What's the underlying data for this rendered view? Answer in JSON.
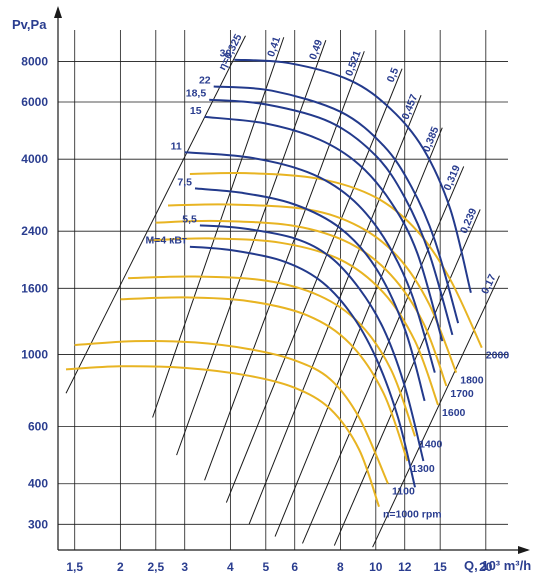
{
  "chart_data": {
    "type": "line",
    "title": "",
    "xlabel": "Q, 10³ m³/h",
    "ylabel": "Pv,Pa",
    "x_scale": "log",
    "y_scale": "log",
    "xlim": [
      1.35,
      23
    ],
    "ylim": [
      250,
      10000
    ],
    "grid": true,
    "legend": "none",
    "x_ticks": [
      "1,5",
      "2",
      "2,5",
      "3",
      "4",
      "5",
      "6",
      "8",
      "10",
      "12",
      "15",
      "20"
    ],
    "x_tick_values": [
      1.5,
      2,
      2.5,
      3,
      4,
      5,
      6,
      8,
      10,
      12,
      15,
      20
    ],
    "y_ticks": [
      "300",
      "400",
      "600",
      "1000",
      "1600",
      "2400",
      "4000",
      "6000",
      "8000"
    ],
    "y_tick_values": [
      300,
      400,
      600,
      1000,
      1600,
      2400,
      4000,
      6000,
      8000
    ],
    "power_curves": [
      {
        "label": "M=4 кВт",
        "points": [
          [
            3.1,
            2150
          ],
          [
            4,
            2100
          ],
          [
            5.5,
            1950
          ],
          [
            7,
            1700
          ],
          [
            8.5,
            1350
          ],
          [
            10,
            980
          ],
          [
            11.5,
            640
          ],
          [
            12.8,
            390
          ]
        ]
      },
      {
        "label": "5,5",
        "points": [
          [
            3.3,
            2500
          ],
          [
            4.3,
            2450
          ],
          [
            6,
            2280
          ],
          [
            7.5,
            2000
          ],
          [
            9,
            1600
          ],
          [
            10.5,
            1200
          ],
          [
            12,
            800
          ],
          [
            13.5,
            470
          ]
        ]
      },
      {
        "label": "7,5",
        "points": [
          [
            3.2,
            3250
          ],
          [
            4.3,
            3150
          ],
          [
            6,
            2900
          ],
          [
            8,
            2450
          ],
          [
            10,
            1850
          ],
          [
            12,
            1200
          ],
          [
            13.6,
            720
          ]
        ]
      },
      {
        "label": "11",
        "points": [
          [
            3,
            4200
          ],
          [
            4.5,
            4050
          ],
          [
            6.5,
            3650
          ],
          [
            8.5,
            3050
          ],
          [
            10.5,
            2300
          ],
          [
            12.5,
            1550
          ],
          [
            14.5,
            880
          ]
        ]
      },
      {
        "label": "15",
        "points": [
          [
            3.4,
            5400
          ],
          [
            5,
            5150
          ],
          [
            7,
            4600
          ],
          [
            9,
            3850
          ],
          [
            11,
            2950
          ],
          [
            13,
            2050
          ],
          [
            15.2,
            1100
          ]
        ]
      },
      {
        "label": "18,5",
        "points": [
          [
            3.5,
            6100
          ],
          [
            5,
            5900
          ],
          [
            7.5,
            5200
          ],
          [
            10,
            4100
          ],
          [
            12,
            3050
          ],
          [
            14,
            2050
          ],
          [
            16.2,
            1150
          ]
        ]
      },
      {
        "label": "22",
        "points": [
          [
            3.6,
            6700
          ],
          [
            5.2,
            6500
          ],
          [
            8,
            5600
          ],
          [
            10.5,
            4400
          ],
          [
            12.5,
            3300
          ],
          [
            14.5,
            2250
          ],
          [
            16.8,
            1250
          ]
        ]
      },
      {
        "label": "30",
        "points": [
          [
            4.1,
            8100
          ],
          [
            5.8,
            7900
          ],
          [
            8.5,
            7000
          ],
          [
            11,
            5700
          ],
          [
            13.5,
            4300
          ],
          [
            16,
            2800
          ],
          [
            18.2,
            1550
          ]
        ]
      }
    ],
    "speed_curves": [
      {
        "label": "n=1000 rpm",
        "points": [
          [
            1.42,
            900
          ],
          [
            2,
            920
          ],
          [
            3,
            910
          ],
          [
            4.5,
            860
          ],
          [
            6,
            790
          ],
          [
            7.5,
            680
          ],
          [
            9,
            510
          ],
          [
            10.2,
            340
          ]
        ]
      },
      {
        "label": "1100",
        "points": [
          [
            1.5,
            1070
          ],
          [
            2.2,
            1100
          ],
          [
            3.2,
            1090
          ],
          [
            4.5,
            1040
          ],
          [
            6,
            960
          ],
          [
            7.5,
            840
          ],
          [
            9,
            640
          ],
          [
            10.8,
            400
          ]
        ]
      },
      {
        "label": "1300",
        "points": [
          [
            2,
            1480
          ],
          [
            3,
            1500
          ],
          [
            4.5,
            1460
          ],
          [
            6.5,
            1320
          ],
          [
            8.5,
            1080
          ],
          [
            10.5,
            760
          ],
          [
            12.2,
            470
          ]
        ]
      },
      {
        "label": "1400",
        "points": [
          [
            2.1,
            1720
          ],
          [
            3.2,
            1740
          ],
          [
            5,
            1690
          ],
          [
            7,
            1520
          ],
          [
            9,
            1250
          ],
          [
            11,
            900
          ],
          [
            12.8,
            560
          ]
        ]
      },
      {
        "label": "1600",
        "points": [
          [
            2.4,
            2250
          ],
          [
            3.5,
            2280
          ],
          [
            5.5,
            2210
          ],
          [
            8,
            1960
          ],
          [
            10.5,
            1550
          ],
          [
            12.8,
            1100
          ],
          [
            14.8,
            700
          ]
        ]
      },
      {
        "label": "1700",
        "points": [
          [
            2.5,
            2550
          ],
          [
            3.7,
            2580
          ],
          [
            6,
            2490
          ],
          [
            8.5,
            2200
          ],
          [
            11,
            1760
          ],
          [
            13.5,
            1250
          ],
          [
            15.6,
            800
          ]
        ]
      },
      {
        "label": "1800",
        "points": [
          [
            2.7,
            2880
          ],
          [
            4,
            2900
          ],
          [
            6.5,
            2800
          ],
          [
            9,
            2480
          ],
          [
            11.5,
            2000
          ],
          [
            14,
            1430
          ],
          [
            16.6,
            880
          ]
        ]
      },
      {
        "label": "2000",
        "points": [
          [
            3.1,
            3600
          ],
          [
            4.5,
            3620
          ],
          [
            7,
            3480
          ],
          [
            10,
            3050
          ],
          [
            13,
            2400
          ],
          [
            16,
            1700
          ],
          [
            19.5,
            1050
          ]
        ]
      }
    ],
    "efficiency_lines": [
      {
        "label": "η=0,325",
        "start": [
          1.42,
          760
        ],
        "end": [
          4.4,
          9600
        ]
      },
      {
        "label": "0,41",
        "start": [
          2.45,
          640
        ],
        "end": [
          5.6,
          9500
        ]
      },
      {
        "label": "0,49",
        "start": [
          2.85,
          490
        ],
        "end": [
          7.3,
          9300
        ]
      },
      {
        "label": "0,521",
        "start": [
          3.4,
          410
        ],
        "end": [
          9.3,
          8600
        ]
      },
      {
        "label": "0,5",
        "start": [
          3.9,
          350
        ],
        "end": [
          11.8,
          7600
        ]
      },
      {
        "label": "0,457",
        "start": [
          4.5,
          300
        ],
        "end": [
          13.3,
          6300
        ]
      },
      {
        "label": "0,385",
        "start": [
          5.3,
          275
        ],
        "end": [
          15.2,
          5000
        ]
      },
      {
        "label": "0,319",
        "start": [
          6.3,
          262
        ],
        "end": [
          17.4,
          3800
        ]
      },
      {
        "label": "0,239",
        "start": [
          7.7,
          258
        ],
        "end": [
          19.3,
          2800
        ]
      },
      {
        "label": "0,17",
        "start": [
          9.8,
          255
        ],
        "end": [
          21.8,
          1750
        ]
      }
    ],
    "colors": {
      "power": "#233a8c",
      "speed": "#e8b422",
      "efficiency": "#1a1a1a",
      "grid": "#1a1a1a",
      "text": "#2a3d8f"
    }
  }
}
